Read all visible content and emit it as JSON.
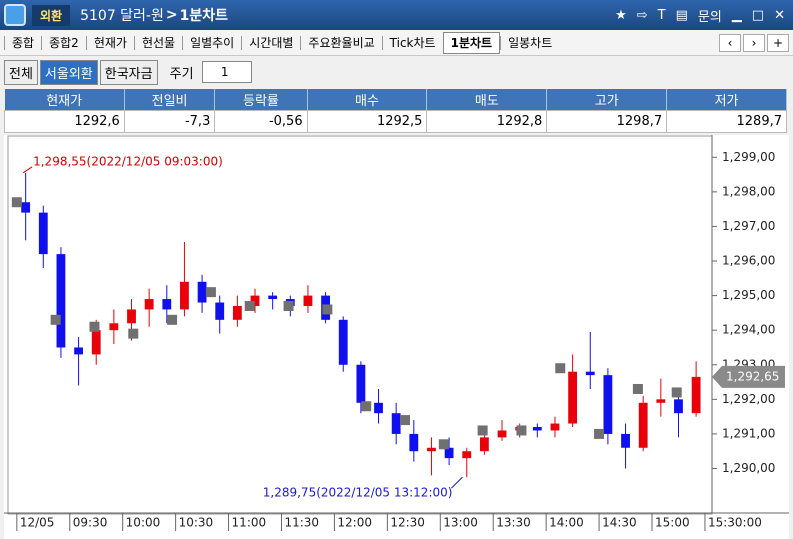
{
  "window": {
    "app": "외환",
    "title": "5107 달러-원",
    "subtitle": "1분차트",
    "help": "문의"
  },
  "tabs": [
    "종합",
    "종합2",
    "현재가",
    "현선물",
    "일별추이",
    "시간대별",
    "주요환율비교",
    "Tick차트",
    "1분차트",
    "일봉차트"
  ],
  "active_tab": "1분차트",
  "markets": [
    "전체",
    "서울외환",
    "한국자금"
  ],
  "active_market": "서울외환",
  "period": {
    "label": "주기",
    "value": "1"
  },
  "quote_table": {
    "headers": [
      "현재가",
      "전일비",
      "등락률",
      "매수",
      "매도",
      "고가",
      "저가"
    ],
    "values": [
      "1292,6",
      "-7,3",
      "-0,56",
      "1292,5",
      "1292,8",
      "1298,7",
      "1289,7"
    ]
  },
  "chart_data": {
    "type": "candlestick",
    "x": [
      "09:00",
      "09:10",
      "09:20",
      "09:30",
      "09:40",
      "09:50",
      "10:00",
      "10:10",
      "10:20",
      "10:30",
      "10:40",
      "10:50",
      "11:00",
      "11:10",
      "11:20",
      "11:30",
      "11:40",
      "11:50",
      "12:00",
      "12:10",
      "12:20",
      "12:30",
      "12:40",
      "12:50",
      "13:00",
      "13:10",
      "13:20",
      "13:30",
      "13:40",
      "13:50",
      "14:00",
      "14:10",
      "14:20",
      "14:30",
      "14:40",
      "14:50",
      "15:00",
      "15:10",
      "15:20"
    ],
    "open": [
      1297.7,
      1297.4,
      1296.2,
      1293.5,
      1293.3,
      1294.0,
      1294.2,
      1294.6,
      1294.9,
      1294.6,
      1295.4,
      1294.8,
      1294.3,
      1294.7,
      1295.0,
      1294.9,
      1294.7,
      1295.0,
      1294.3,
      1293.0,
      1291.9,
      1291.6,
      1291.0,
      1290.5,
      1290.6,
      1290.3,
      1290.5,
      1290.9,
      1291.1,
      1291.2,
      1291.1,
      1291.3,
      1292.8,
      1292.7,
      1291.0,
      1290.6,
      1291.9,
      1292.0,
      1291.6
    ],
    "high": [
      1298.55,
      1297.6,
      1296.4,
      1293.8,
      1294.3,
      1294.6,
      1294.9,
      1295.2,
      1295.3,
      1296.55,
      1295.6,
      1295.0,
      1295.0,
      1295.2,
      1295.1,
      1295.0,
      1295.3,
      1295.1,
      1294.4,
      1293.1,
      1292.3,
      1291.9,
      1291.4,
      1290.9,
      1290.9,
      1290.6,
      1291.1,
      1291.4,
      1291.3,
      1291.3,
      1291.5,
      1293.3,
      1293.95,
      1292.9,
      1291.3,
      1292.1,
      1292.6,
      1292.2,
      1293.1
    ],
    "low": [
      1296.6,
      1295.8,
      1293.2,
      1292.4,
      1293.0,
      1293.6,
      1293.7,
      1294.1,
      1294.2,
      1294.4,
      1294.5,
      1293.9,
      1294.1,
      1294.5,
      1294.6,
      1294.4,
      1294.5,
      1294.2,
      1292.8,
      1291.6,
      1291.3,
      1290.7,
      1290.2,
      1289.8,
      1290.1,
      1289.75,
      1290.4,
      1290.8,
      1290.9,
      1290.9,
      1290.9,
      1291.2,
      1292.3,
      1290.7,
      1290.0,
      1290.5,
      1291.5,
      1290.9,
      1291.5
    ],
    "close": [
      1297.4,
      1296.2,
      1293.5,
      1293.3,
      1294.0,
      1294.2,
      1294.6,
      1294.9,
      1294.6,
      1295.4,
      1294.8,
      1294.3,
      1294.7,
      1295.0,
      1294.9,
      1294.7,
      1295.0,
      1294.3,
      1293.0,
      1291.9,
      1291.6,
      1291.0,
      1290.5,
      1290.6,
      1290.3,
      1290.5,
      1290.9,
      1291.1,
      1291.2,
      1291.1,
      1291.3,
      1292.8,
      1292.7,
      1291.0,
      1290.6,
      1291.9,
      1292.0,
      1291.6,
      1292.65
    ],
    "up_color": "#e8000b",
    "down_color": "#1010ee",
    "markers": {
      "color": "#707070",
      "x": [
        "09:00",
        "09:22",
        "09:44",
        "10:06",
        "10:28",
        "10:50",
        "11:12",
        "11:34",
        "11:56",
        "12:18",
        "12:40",
        "13:02",
        "13:24",
        "13:46",
        "14:08",
        "14:30",
        "14:52",
        "15:14"
      ],
      "values": [
        1297.7,
        1294.3,
        1294.1,
        1293.9,
        1294.3,
        1295.1,
        1294.7,
        1294.7,
        1294.6,
        1291.8,
        1291.4,
        1290.7,
        1291.1,
        1291.1,
        1292.9,
        1291.0,
        1292.3,
        1292.2
      ]
    },
    "annotations": [
      {
        "text": "1,298,55(2022/12/05 09:03:00)",
        "x": "09:03",
        "value": 1298.55,
        "color": "#d40000",
        "position": "upper-right"
      },
      {
        "text": "1,289,75(2022/12/05 13:12:00)",
        "x": "13:12",
        "value": 1289.75,
        "color": "#1a1ad0",
        "position": "lower-left"
      }
    ],
    "last": {
      "value": 1292.65,
      "label": "1,292,65"
    },
    "xlim": [
      "08:55",
      "15:34"
    ],
    "xticks": [
      {
        "value": "09:00",
        "label": "12/05"
      },
      "09:30",
      "10:00",
      "10:30",
      "11:00",
      "11:30",
      "12:00",
      "12:30",
      "13:00",
      "13:30",
      "14:00",
      "14:30",
      "15:00",
      {
        "value": "15:30",
        "label": "15:30:00"
      }
    ],
    "ylim": [
      1288.8,
      1299.5
    ],
    "yticks": [
      {
        "value": 1290,
        "label": "1,290,00"
      },
      {
        "value": 1291,
        "label": "1,291,00"
      },
      {
        "value": 1292,
        "label": "1,292,00"
      },
      {
        "value": 1293,
        "label": "1,293,00"
      },
      {
        "value": 1294,
        "label": "1,294,00"
      },
      {
        "value": 1295,
        "label": "1,295,00"
      },
      {
        "value": 1296,
        "label": "1,296,00"
      },
      {
        "value": 1297,
        "label": "1,297,00"
      },
      {
        "value": 1298,
        "label": "1,298,00"
      },
      {
        "value": 1299,
        "label": "1,299,00"
      }
    ]
  }
}
